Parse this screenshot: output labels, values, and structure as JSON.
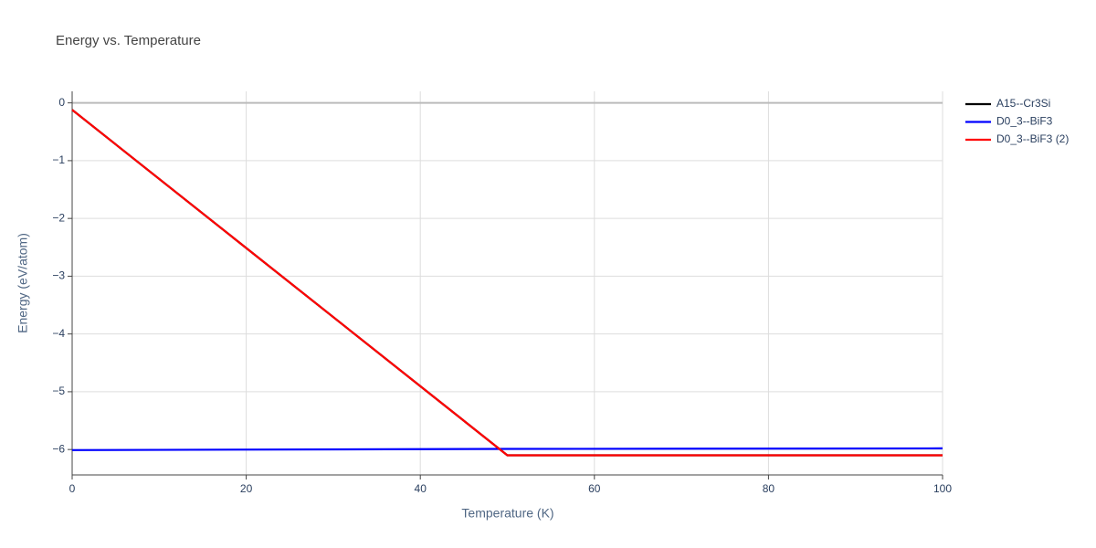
{
  "chart_data": {
    "type": "line",
    "title": "Energy vs. Temperature",
    "x_label": "Temperature (K)",
    "y_label": "Energy (eV/atom)",
    "x": [
      0,
      50,
      100
    ],
    "series": [
      {
        "name": "A15--Cr3Si",
        "color": "#000000",
        "values": [
          -0.12,
          -6.1,
          -6.1
        ]
      },
      {
        "name": "D0_3--BiF3",
        "color": "#0000ff",
        "values": [
          -6.01,
          -5.99,
          -5.98
        ]
      },
      {
        "name": "D0_3--BiF3 (2)",
        "color": "#ff0000",
        "values": [
          -0.12,
          -6.1,
          -6.1
        ]
      }
    ],
    "xlim": [
      0,
      100
    ],
    "xticks": [
      0,
      20,
      40,
      60,
      80,
      100
    ],
    "ylim": [
      -6.44,
      0.2
    ],
    "yticks": [
      0,
      {
        "value": -1,
        "label": "−1"
      },
      {
        "value": -2,
        "label": "−2"
      },
      {
        "value": -3,
        "label": "−3"
      },
      {
        "value": -4,
        "label": "−4"
      },
      {
        "value": -5,
        "label": "−5"
      },
      {
        "value": -6,
        "label": "−6"
      }
    ],
    "grid": true,
    "legend": "right"
  }
}
